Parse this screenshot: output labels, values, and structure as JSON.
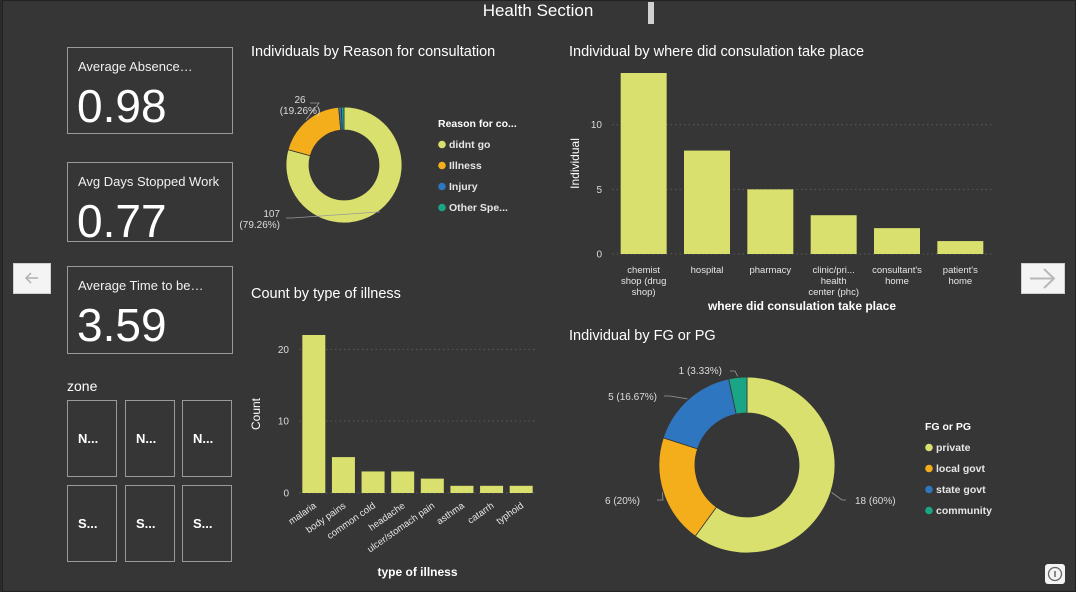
{
  "page": {
    "title": "Health Section"
  },
  "kpis": [
    {
      "label": "Average Absence…",
      "value": "0.98"
    },
    {
      "label": "Avg Days Stopped Work",
      "value": "0.77"
    },
    {
      "label": "Average Time to be…",
      "value": "3.59"
    }
  ],
  "zone": {
    "title": "zone",
    "tiles": [
      "N...",
      "N...",
      "N...",
      "S...",
      "S...",
      "S..."
    ]
  },
  "colors": {
    "yellow": "#d9e06e",
    "orange": "#f5ae1b",
    "blue": "#2f76c0",
    "teal": "#1aa585"
  },
  "chart_data": [
    {
      "type": "pie",
      "title": "Individuals by Reason for consultation",
      "legend_title": "Reason for co...",
      "legend_position": "right",
      "categories": [
        "didnt go",
        "Illness",
        "Injury",
        "Other Spe..."
      ],
      "values": [
        107,
        26,
        1,
        1
      ],
      "colors": [
        "#d9e06e",
        "#f5ae1b",
        "#2f76c0",
        "#1aa585"
      ],
      "annotations": [
        {
          "category": "didnt go",
          "line1": "107",
          "line2": "(79.26%)"
        },
        {
          "category": "Illness",
          "line1": "26",
          "line2": "(19.26%)"
        }
      ]
    },
    {
      "type": "bar",
      "title": "Individual by where did consulation take place",
      "xlabel": "where did consulation take place",
      "ylabel": "Individual",
      "ylim": [
        0,
        14
      ],
      "yticks": [
        0,
        5,
        10
      ],
      "categories": [
        [
          "chemist",
          "shop (drug",
          "shop)"
        ],
        [
          "hospital"
        ],
        [
          "pharmacy"
        ],
        [
          "clinic/pri...",
          "health",
          "center (phc)"
        ],
        [
          "consultant's",
          "home"
        ],
        [
          "patient's",
          "home"
        ]
      ],
      "values": [
        14,
        8,
        5,
        3,
        2,
        1
      ],
      "color": "#d9e06e",
      "grid": true
    },
    {
      "type": "bar",
      "title": "Count by type of illness",
      "xlabel": "type of illness",
      "ylabel": "Count",
      "ylim": [
        0,
        22
      ],
      "yticks": [
        0,
        10,
        20
      ],
      "categories": [
        "malaria",
        "body pains",
        "common cold",
        "headache",
        "ulcer/stomach pain",
        "asthma",
        "catarrh",
        "typhoid"
      ],
      "values": [
        22,
        5,
        3,
        3,
        2,
        1,
        1,
        1
      ],
      "color": "#d9e06e",
      "grid": true
    },
    {
      "type": "pie",
      "title": "Individual by FG or PG",
      "legend_title": "FG or PG",
      "legend_position": "right",
      "categories": [
        "private",
        "local govt",
        "state govt",
        "community"
      ],
      "values": [
        18,
        6,
        5,
        1
      ],
      "colors": [
        "#d9e06e",
        "#f5ae1b",
        "#2f76c0",
        "#1aa585"
      ],
      "annotations": [
        {
          "category": "private",
          "line1": "18 (60%)"
        },
        {
          "category": "local govt",
          "line1": "6 (20%)"
        },
        {
          "category": "state govt",
          "line1": "5 (16.67%)"
        },
        {
          "category": "community",
          "line1": "1 (3.33%)"
        }
      ]
    }
  ]
}
